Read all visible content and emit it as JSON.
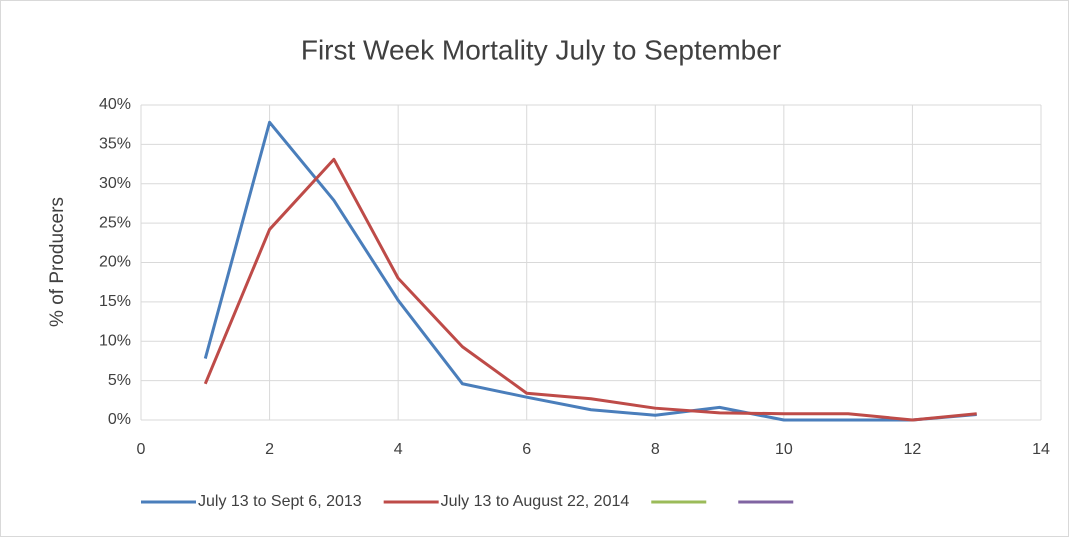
{
  "chart_data": {
    "type": "line",
    "title": "First Week Mortality July to September",
    "ylabel": "% of Producers",
    "x": [
      1,
      2,
      3,
      4,
      5,
      6,
      7,
      8,
      9,
      10,
      11,
      12,
      13
    ],
    "series": [
      {
        "name": "July 13 to Sept 6, 2013",
        "color": "#4a7ebb",
        "values": [
          7.8,
          37.8,
          27.9,
          15.2,
          4.6,
          2.9,
          1.3,
          0.6,
          1.6,
          0,
          0,
          0,
          0.7
        ]
      },
      {
        "name": "July 13 to August 22, 2014",
        "color": "#be4b48",
        "values": [
          4.6,
          24.2,
          33.1,
          18.0,
          9.3,
          3.4,
          2.7,
          1.5,
          0.9,
          0.8,
          0.8,
          0,
          0.8
        ]
      },
      {
        "color": "#9bbb59",
        "values": [
          null,
          null,
          null,
          null,
          null,
          null,
          null,
          null,
          null,
          null,
          null,
          null,
          null
        ]
      },
      {
        "color": "#8064a2",
        "values": [
          null,
          null,
          null,
          null,
          null,
          null,
          null,
          null,
          null,
          null,
          null,
          null,
          null
        ]
      }
    ],
    "xlim": [
      0,
      14
    ],
    "xticks": [
      0,
      2,
      4,
      6,
      8,
      10,
      12,
      14
    ],
    "ylim": [
      0,
      40
    ],
    "yticks": [
      {
        "value": 0,
        "label": "0%"
      },
      {
        "value": 5,
        "label": "5%"
      },
      {
        "value": 10,
        "label": "10%"
      },
      {
        "value": 15,
        "label": "15%"
      },
      {
        "value": 20,
        "label": "20%"
      },
      {
        "value": 25,
        "label": "25%"
      },
      {
        "value": 30,
        "label": "30%"
      },
      {
        "value": 35,
        "label": "35%"
      },
      {
        "value": 40,
        "label": "40%"
      }
    ],
    "grid": true,
    "legend": "bottom"
  }
}
